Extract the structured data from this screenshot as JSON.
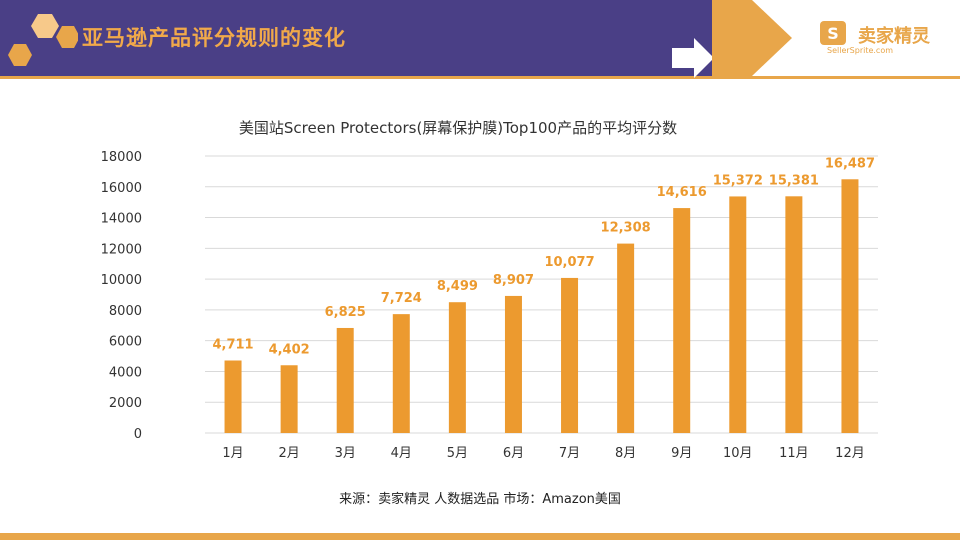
{
  "header": {
    "title": "亚马逊产品评分规则的变化",
    "logo_text": "卖家精灵",
    "logo_sub": "SellerSprite.com",
    "colors": {
      "band": "#4a3f86",
      "accent": "#e8a64a"
    }
  },
  "chart_data": {
    "type": "bar",
    "title": "美国站Screen Protectors(屏幕保护膜)Top100产品的平均评分数",
    "categories": [
      "1月",
      "2月",
      "3月",
      "4月",
      "5月",
      "6月",
      "7月",
      "8月",
      "9月",
      "10月",
      "11月",
      "12月"
    ],
    "values": [
      4711,
      4402,
      6825,
      7724,
      8499,
      8907,
      10077,
      12308,
      14616,
      15372,
      15381,
      16487
    ],
    "value_labels": [
      "4,711",
      "4,402",
      "6,825",
      "7,724",
      "8,499",
      "8,907",
      "10,077",
      "12,308",
      "14,616",
      "15,372",
      "15,381",
      "16,487"
    ],
    "yticks": [
      "0",
      "2000",
      "4000",
      "6000",
      "8000",
      "10000",
      "12000",
      "14000",
      "16000",
      "18000"
    ],
    "ylim": [
      0,
      18000
    ],
    "xlabel": "",
    "ylabel": "",
    "grid": true,
    "legend": "none",
    "bar_color": "#ec9a2f"
  },
  "footer": {
    "source": "来源：卖家精灵 人数据选品    市场：Amazon美国"
  }
}
